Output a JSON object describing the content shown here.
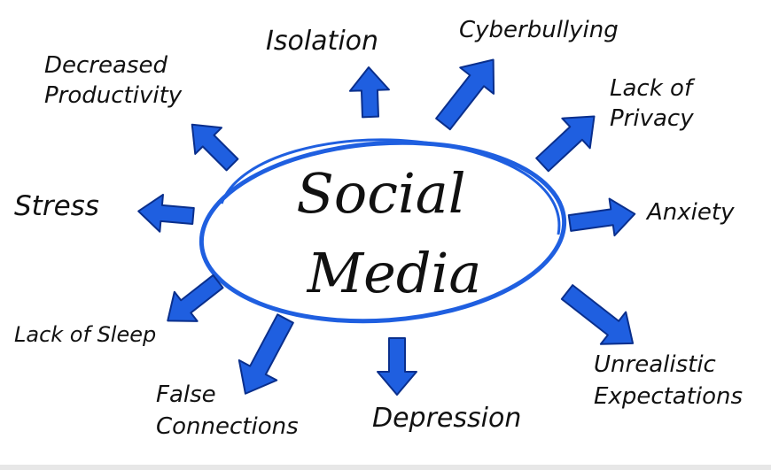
{
  "center": {
    "line1": "Social",
    "line2": "Media"
  },
  "effects": {
    "isolation": "Isolation",
    "cyberbullying": "Cyberbullying",
    "decreased_productivity_1": "Decreased",
    "decreased_productivity_2": "Productivity",
    "lack_of_privacy_1": "Lack of",
    "lack_of_privacy_2": "Privacy",
    "stress": "Stress",
    "anxiety": "Anxiety",
    "lack_of_sleep": "Lack of Sleep",
    "unrealistic_1": "Unrealistic",
    "unrealistic_2": "Expectations",
    "false_connections_1": "False",
    "false_connections_2": "Connections",
    "depression": "Depression"
  },
  "colors": {
    "arrow_fill": "#1f5fe0",
    "arrow_stroke": "#0a2f8c",
    "ellipse_stroke": "#1f5fe0",
    "text": "#111111"
  }
}
